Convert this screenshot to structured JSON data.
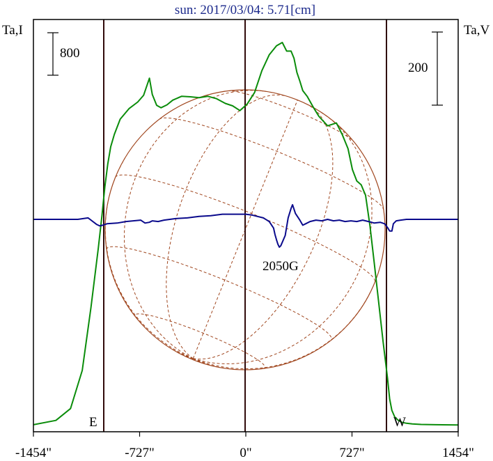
{
  "chart_data": {
    "type": "line",
    "title": "sun: 2017/03/04: 5.71[cm]",
    "left_axis_label": "Ta,I",
    "right_axis_label": "Ta,V",
    "left_scale_bar": "800",
    "right_scale_bar": "200",
    "x_ticks": [
      "-1454\"",
      "-727\"",
      "0\"",
      "727\"",
      "1454\""
    ],
    "x_tick_values": [
      -1454,
      -727,
      0,
      727,
      1454
    ],
    "xlim": [
      -1454,
      1454
    ],
    "limb_labels": {
      "east": "E",
      "west": "W"
    },
    "annotation": "2050G",
    "grid": false,
    "colors": {
      "stokes_i": "#0a8c0a",
      "stokes_v": "#0a0a8c",
      "solar_disk": "#a0461e",
      "limb_lines": "#300a0a"
    },
    "series": [
      {
        "color_key": "stokes_i",
        "x": [
          -1454,
          -1300,
          -1200,
          -1120,
          -1060,
          -1010,
          -985,
          -965,
          -945,
          -925,
          -900,
          -860,
          -800,
          -740,
          -700,
          -660,
          -640,
          -610,
          -580,
          -540,
          -500,
          -440,
          -380,
          -320,
          -260,
          -200,
          -140,
          -90,
          -40,
          10,
          60,
          110,
          160,
          210,
          250,
          280,
          310,
          330,
          350,
          370,
          390,
          420,
          460,
          500,
          560,
          620,
          660,
          700,
          730,
          760,
          790,
          820,
          850,
          880,
          910,
          940,
          970,
          985,
          1000,
          1020,
          1045,
          1070,
          1100,
          1140,
          1200,
          1300,
          1454
        ],
        "values": [
          30,
          75,
          200,
          600,
          1260,
          1880,
          2225,
          2530,
          2770,
          2950,
          3080,
          3240,
          3350,
          3420,
          3490,
          3670,
          3500,
          3385,
          3360,
          3390,
          3440,
          3480,
          3475,
          3465,
          3480,
          3455,
          3405,
          3380,
          3330,
          3400,
          3520,
          3750,
          3915,
          4010,
          4045,
          3955,
          3955,
          3880,
          3730,
          3640,
          3540,
          3480,
          3370,
          3270,
          3170,
          3200,
          3080,
          2930,
          2710,
          2590,
          2550,
          2440,
          2120,
          1720,
          1310,
          900,
          520,
          300,
          180,
          110,
          75,
          55,
          45,
          38,
          33,
          30,
          28
        ]
      },
      {
        "color_key": "stokes_v",
        "x": [
          -1454,
          -1300,
          -1150,
          -1080,
          -1020,
          -1000,
          -980,
          -950,
          -880,
          -820,
          -720,
          -690,
          -660,
          -640,
          -600,
          -560,
          -480,
          -400,
          -320,
          -240,
          -160,
          -80,
          0,
          40,
          80,
          120,
          160,
          190,
          200,
          210,
          220,
          230,
          240,
          270,
          290,
          310,
          320,
          340,
          370,
          390,
          410,
          440,
          480,
          520,
          560,
          600,
          640,
          680,
          720,
          760,
          800,
          840,
          880,
          920,
          950,
          970,
          985,
          1000,
          1010,
          1030,
          1060,
          1100,
          1200,
          1300,
          1454
        ],
        "values": [
          0,
          0,
          0,
          2,
          -7,
          -9,
          -8,
          -6,
          -5,
          -3,
          -1,
          -5,
          -4,
          -2,
          -3,
          -1,
          1,
          2,
          4,
          5,
          7,
          7,
          7,
          6,
          4,
          2,
          -3,
          -12,
          -21,
          -28,
          -34,
          -38,
          -36,
          -22,
          2,
          15,
          20,
          8,
          -1,
          -8,
          -6,
          -3,
          -1,
          -2,
          0,
          -2,
          -1,
          -3,
          -2,
          -3,
          -1,
          -3,
          -5,
          -4,
          -6,
          -11,
          -16,
          -16,
          -6,
          -2,
          -1,
          0,
          0,
          0,
          0
        ]
      }
    ]
  }
}
